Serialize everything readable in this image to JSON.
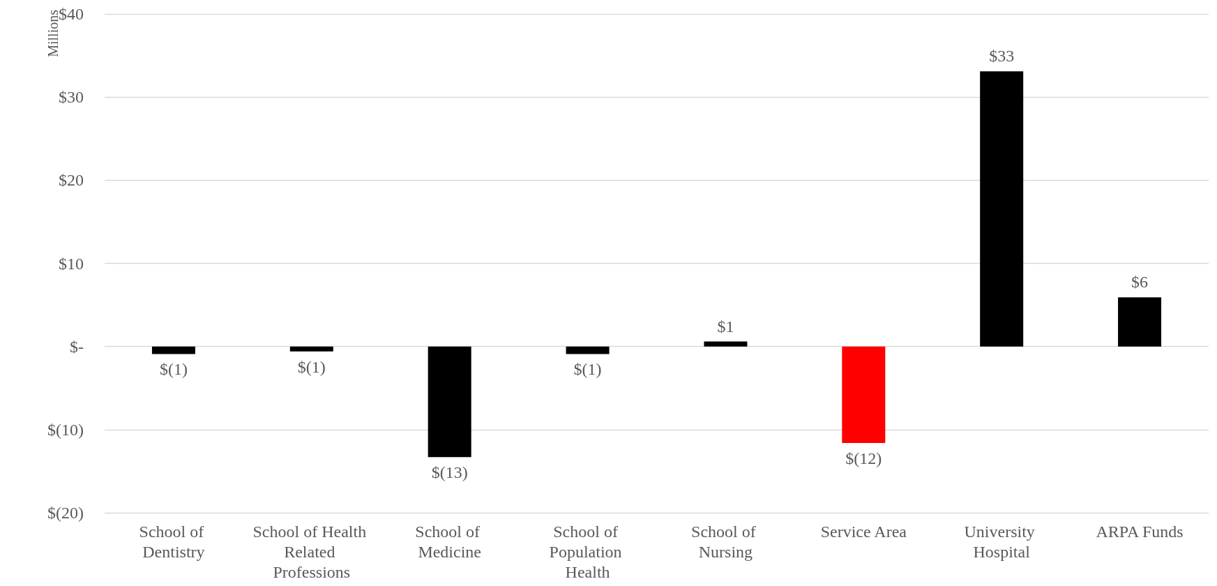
{
  "chart_data": {
    "type": "bar",
    "ylabel": "Millions",
    "categories": [
      "School of Dentistry",
      "School of Health Related Professions",
      "School of Medicine",
      "School of Population Health",
      "School of Nursing",
      "Service Area",
      "University Hospital",
      "ARPA Funds"
    ],
    "values": [
      -0.9,
      -0.6,
      -13.3,
      -0.9,
      0.6,
      -11.6,
      33.1,
      5.9
    ],
    "colors": [
      "#000000",
      "#000000",
      "#000000",
      "#000000",
      "#000000",
      "#ff0000",
      "#000000",
      "#000000"
    ],
    "value_labels": [
      "$(1)",
      "$(1)",
      "$(13)",
      "$(1)",
      "$1",
      "$(12)",
      "$33",
      "$6"
    ],
    "ylim": [
      -20,
      40
    ],
    "yticks": [
      {
        "value": -20,
        "label": "$(20)"
      },
      {
        "value": -10,
        "label": "$(10)"
      },
      {
        "value": 0,
        "label": "$-"
      },
      {
        "value": 10,
        "label": "$10"
      },
      {
        "value": 20,
        "label": "$20"
      },
      {
        "value": 30,
        "label": "$30"
      },
      {
        "value": 40,
        "label": "$40"
      }
    ],
    "grid": "y"
  }
}
